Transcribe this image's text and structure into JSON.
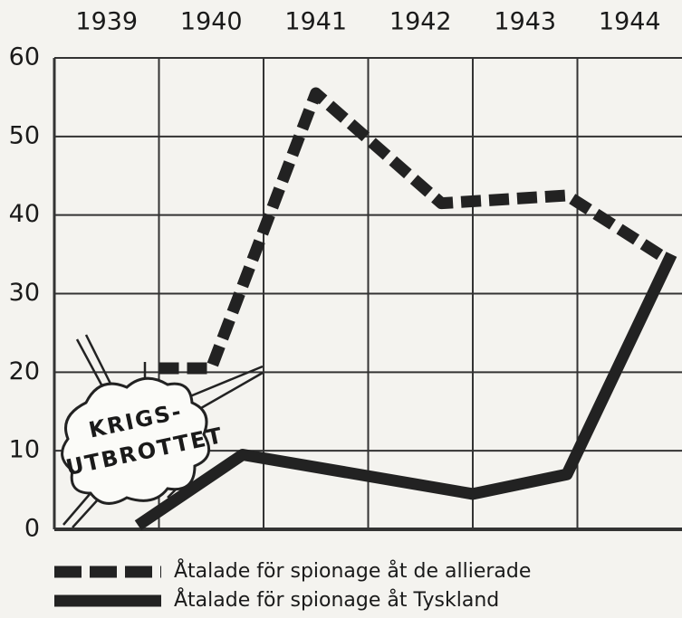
{
  "chart_data": {
    "type": "line",
    "xlim": [
      1939,
      1945
    ],
    "xticks": [
      {
        "value": 1939.5,
        "label": "1939"
      },
      {
        "value": 1940.5,
        "label": "1940"
      },
      {
        "value": 1941.5,
        "label": "1941"
      },
      {
        "value": 1942.5,
        "label": "1942"
      },
      {
        "value": 1943.5,
        "label": "1943"
      },
      {
        "value": 1944.5,
        "label": "1944"
      }
    ],
    "ylim": [
      0,
      60
    ],
    "yticks": [
      0,
      10,
      20,
      30,
      40,
      50,
      60
    ],
    "grid": true,
    "annotation": [
      "KRIGS-",
      "UTBROTTET"
    ],
    "series": [
      {
        "name": "Åtalade för spionage åt de allierade",
        "color": "#222222",
        "dashed": true,
        "x": [
          1940.0,
          1940.5,
          1941.5,
          1942.7,
          1943.9,
          1944.9
        ],
        "values": [
          20.5,
          20.5,
          55.5,
          41.5,
          42.5,
          34
        ]
      },
      {
        "name": "Åtalade för spionage åt Tyskland",
        "color": "#222222",
        "dashed": false,
        "x": [
          1939.8,
          1940.8,
          1943.0,
          1943.9,
          1944.9
        ],
        "values": [
          0.5,
          9.5,
          4.5,
          7,
          35
        ]
      }
    ]
  }
}
